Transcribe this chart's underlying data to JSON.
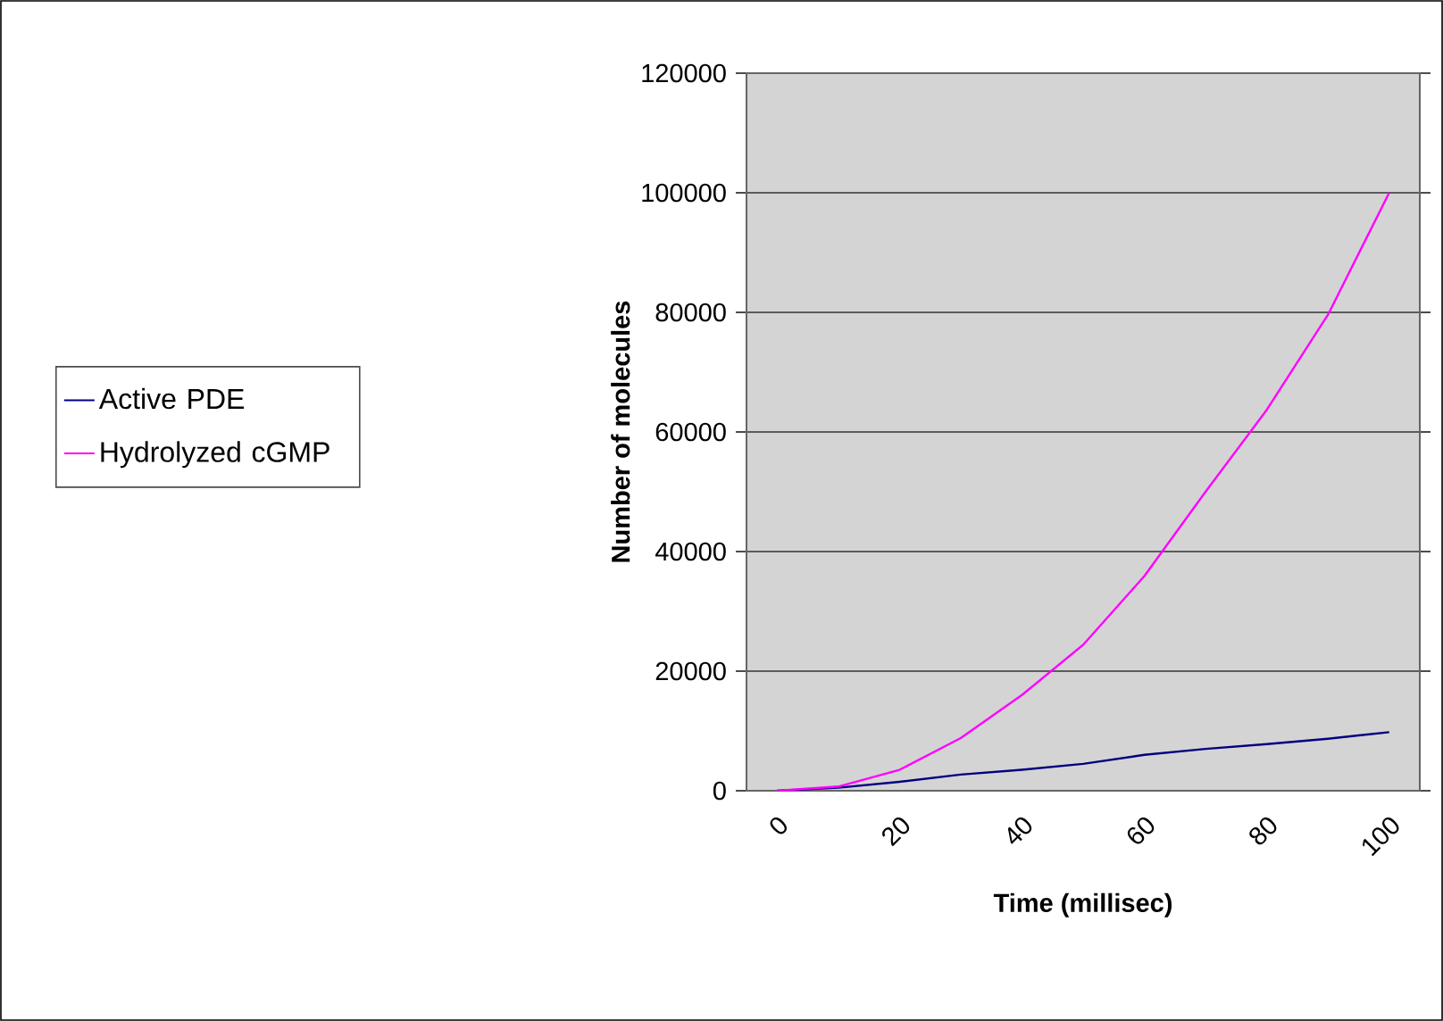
{
  "chart_data": {
    "type": "line",
    "xlabel": "Time (millisec)",
    "ylabel": "Number of molecules",
    "categories": [
      "0",
      null,
      "20",
      null,
      "40",
      null,
      "60",
      null,
      "80",
      null,
      "100"
    ],
    "series": [
      {
        "name": "Active PDE",
        "color": "#000080",
        "values": [
          0,
          500,
          1500,
          2700,
          3500,
          4500,
          6000,
          7000,
          7800,
          8700,
          9800
        ]
      },
      {
        "name": "Hydrolyzed cGMP",
        "color": "#ff00ff",
        "values": [
          0,
          700,
          3500,
          8800,
          16000,
          24400,
          35900,
          50000,
          63700,
          79600,
          100000
        ]
      }
    ],
    "ylim": [
      0,
      120000
    ],
    "yticks": [
      0,
      20000,
      40000,
      60000,
      80000,
      100000,
      120000
    ],
    "grid": "y",
    "legend": "left"
  }
}
